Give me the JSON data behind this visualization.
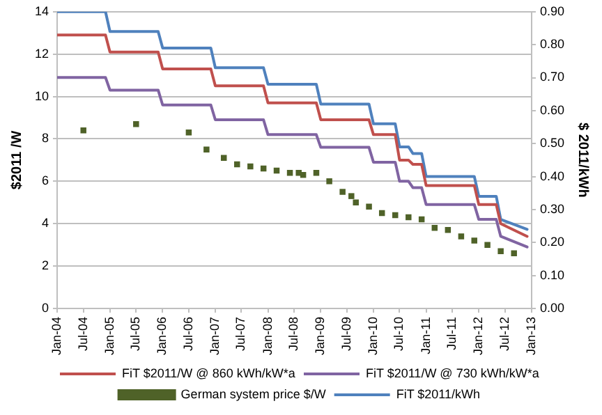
{
  "chart_data": {
    "type": "line",
    "ylabel": "$2011 /W",
    "y2label": "$ 2011/kWh",
    "ylim": [
      0,
      14
    ],
    "yticks": [
      0,
      2,
      4,
      6,
      8,
      10,
      12,
      14
    ],
    "y2lim": [
      0,
      0.9
    ],
    "y2ticks": [
      {
        "value": 0,
        "label": "0.00"
      },
      {
        "value": 0.1,
        "label": "0.10"
      },
      {
        "value": 0.2,
        "label": "0.20"
      },
      {
        "value": 0.3,
        "label": "0.30"
      },
      {
        "value": 0.4,
        "label": "0.40"
      },
      {
        "value": 0.5,
        "label": "0.50"
      },
      {
        "value": 0.6,
        "label": "0.60"
      },
      {
        "value": 0.7,
        "label": "0.70"
      },
      {
        "value": 0.8,
        "label": "0.80"
      },
      {
        "value": 0.9,
        "label": "0.90"
      }
    ],
    "xlim": [
      "2004-01",
      "2013-01"
    ],
    "xticks": [
      {
        "value": "2004-01",
        "label": "Jan-04"
      },
      {
        "value": "2004-07",
        "label": "Jul-04"
      },
      {
        "value": "2005-01",
        "label": "Jan-05"
      },
      {
        "value": "2005-07",
        "label": "Jul-05"
      },
      {
        "value": "2006-01",
        "label": "Jan-06"
      },
      {
        "value": "2006-07",
        "label": "Jul-06"
      },
      {
        "value": "2007-01",
        "label": "Jan-07"
      },
      {
        "value": "2007-07",
        "label": "Jul-07"
      },
      {
        "value": "2008-01",
        "label": "Jan-08"
      },
      {
        "value": "2008-07",
        "label": "Jul-08"
      },
      {
        "value": "2009-01",
        "label": "Jan-09"
      },
      {
        "value": "2009-07",
        "label": "Jul-09"
      },
      {
        "value": "2010-01",
        "label": "Jan-10"
      },
      {
        "value": "2010-07",
        "label": "Jul-10"
      },
      {
        "value": "2011-01",
        "label": "Jan-11"
      },
      {
        "value": "2011-07",
        "label": "Jul-11"
      },
      {
        "value": "2012-01",
        "label": "Jan-12"
      },
      {
        "value": "2012-07",
        "label": "Jul-12"
      },
      {
        "value": "2013-01",
        "label": "Jan-13"
      }
    ],
    "grid": "y",
    "legend": "bottom",
    "line_style": "solid",
    "series": [
      {
        "name": "FiT $2011/W @ 860 kWh/kW*a",
        "type": "line",
        "marker": "none",
        "color": "#c0504d",
        "x": [
          "2004-01",
          "2004-12",
          "2005-01",
          "2005-12",
          "2006-01",
          "2006-12",
          "2007-01",
          "2007-12",
          "2008-01",
          "2008-12",
          "2009-01",
          "2009-12",
          "2010-01",
          "2010-06",
          "2010-07",
          "2010-09",
          "2010-10",
          "2010-12",
          "2011-01",
          "2011-12",
          "2012-01",
          "2012-05",
          "2012-06",
          "2012-12"
        ],
        "values": [
          12.9,
          12.9,
          12.1,
          12.1,
          11.3,
          11.3,
          10.5,
          10.5,
          9.7,
          9.7,
          8.9,
          8.9,
          8.2,
          8.2,
          7.0,
          7.0,
          6.8,
          6.8,
          5.8,
          5.8,
          4.9,
          4.9,
          4.0,
          3.4
        ]
      },
      {
        "name": "FiT $2011/W @ 730 kWh/kW*a",
        "type": "line",
        "marker": "none",
        "color": "#8064a2",
        "x": [
          "2004-01",
          "2004-12",
          "2005-01",
          "2005-12",
          "2006-01",
          "2006-12",
          "2007-01",
          "2007-12",
          "2008-01",
          "2008-12",
          "2009-01",
          "2009-12",
          "2010-01",
          "2010-06",
          "2010-07",
          "2010-09",
          "2010-10",
          "2010-12",
          "2011-01",
          "2011-12",
          "2012-01",
          "2012-05",
          "2012-06",
          "2012-12"
        ],
        "values": [
          10.9,
          10.9,
          10.3,
          10.3,
          9.6,
          9.6,
          8.9,
          8.9,
          8.2,
          8.2,
          7.6,
          7.6,
          6.9,
          6.9,
          6.0,
          6.0,
          5.7,
          5.7,
          4.9,
          4.9,
          4.2,
          4.2,
          3.4,
          2.9
        ]
      },
      {
        "name": "German system price $/W",
        "type": "scatter",
        "marker": "square",
        "color": "#4f6228",
        "x": [
          "2004-07",
          "2005-07",
          "2006-07",
          "2006-11",
          "2007-03",
          "2007-06",
          "2007-09",
          "2007-12",
          "2008-03",
          "2008-06",
          "2008-08",
          "2008-09",
          "2008-12",
          "2009-03",
          "2009-06",
          "2009-08",
          "2009-09",
          "2009-12",
          "2010-03",
          "2010-06",
          "2010-09",
          "2010-12",
          "2011-03",
          "2011-06",
          "2011-09",
          "2011-12",
          "2012-03",
          "2012-06",
          "2012-09"
        ],
        "values": [
          8.4,
          8.7,
          8.3,
          7.5,
          7.1,
          6.8,
          6.7,
          6.6,
          6.5,
          6.4,
          6.4,
          6.3,
          6.4,
          6.0,
          5.5,
          5.3,
          5.0,
          4.8,
          4.5,
          4.4,
          4.3,
          4.2,
          3.8,
          3.7,
          3.4,
          3.2,
          3.0,
          2.7,
          2.6
        ]
      },
      {
        "name": "FiT $2011/kWh",
        "type": "line",
        "marker": "none",
        "axis": "y2",
        "color": "#4f81bd",
        "x": [
          "2004-01",
          "2004-12",
          "2005-01",
          "2005-12",
          "2006-01",
          "2006-12",
          "2007-01",
          "2007-12",
          "2008-01",
          "2008-12",
          "2009-01",
          "2009-12",
          "2010-01",
          "2010-06",
          "2010-07",
          "2010-09",
          "2010-10",
          "2010-12",
          "2011-01",
          "2011-12",
          "2012-01",
          "2012-05",
          "2012-06",
          "2012-12"
        ],
        "values": [
          0.9,
          0.9,
          0.84,
          0.84,
          0.79,
          0.79,
          0.73,
          0.73,
          0.68,
          0.68,
          0.62,
          0.62,
          0.56,
          0.56,
          0.49,
          0.49,
          0.47,
          0.47,
          0.4,
          0.4,
          0.34,
          0.34,
          0.27,
          0.24
        ]
      }
    ]
  }
}
